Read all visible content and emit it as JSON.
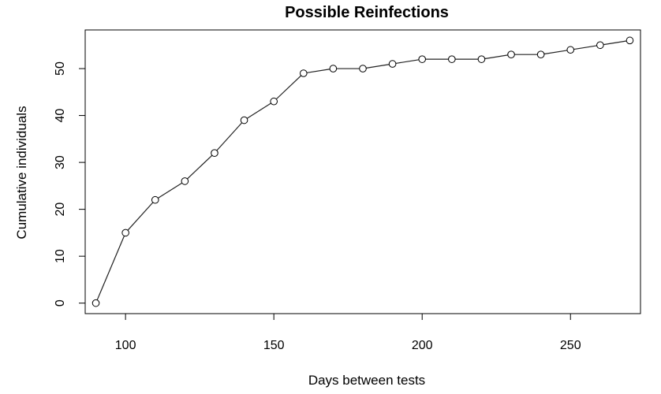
{
  "chart_data": {
    "type": "line",
    "title": "Possible Reinfections",
    "xlabel": "Days between tests",
    "ylabel": "Cumulative individuals",
    "xlim": [
      86.4,
      273.6
    ],
    "ylim": [
      -2.24,
      58.24
    ],
    "x_ticks": [
      100,
      150,
      200,
      250
    ],
    "y_ticks": [
      0,
      10,
      20,
      30,
      40,
      50
    ],
    "grid": false,
    "line_color": "#222222",
    "marker": "open-circle",
    "series": [
      {
        "x": [
          90,
          100,
          110,
          120,
          130,
          140,
          150,
          160,
          170,
          180,
          190,
          200,
          210,
          220,
          230,
          240,
          250,
          260,
          270
        ],
        "y": [
          0,
          15,
          22,
          26,
          32,
          39,
          43,
          49,
          50,
          50,
          51,
          52,
          52,
          52,
          53,
          53,
          54,
          55,
          56
        ]
      }
    ]
  }
}
